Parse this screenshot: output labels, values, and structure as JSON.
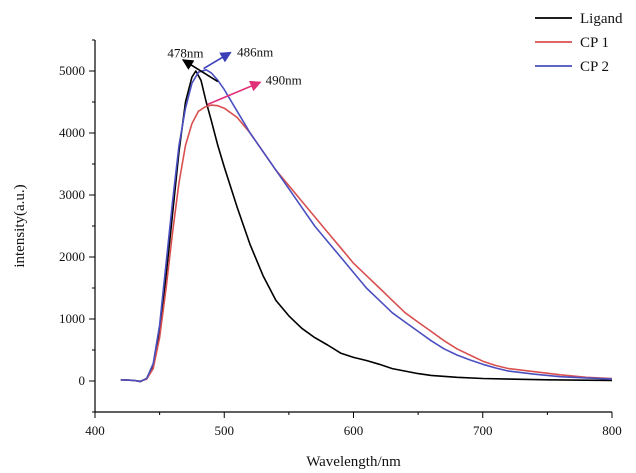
{
  "chart_data": {
    "type": "line",
    "xlabel": "Wavelength/nm",
    "ylabel": "intensity(a.u.)",
    "xlim": [
      400,
      800
    ],
    "ylim": [
      -500,
      5500
    ],
    "x_ticks": [
      400,
      500,
      600,
      700,
      800
    ],
    "y_ticks": [
      0,
      1000,
      2000,
      3000,
      4000,
      5000
    ],
    "grid": false,
    "legend_position": "top-right",
    "series": [
      {
        "name": "Ligand",
        "color": "#000000",
        "points": [
          [
            420,
            20
          ],
          [
            425,
            15
          ],
          [
            430,
            10
          ],
          [
            435,
            -10
          ],
          [
            440,
            40
          ],
          [
            445,
            250
          ],
          [
            450,
            800
          ],
          [
            455,
            1700
          ],
          [
            460,
            2700
          ],
          [
            465,
            3700
          ],
          [
            470,
            4500
          ],
          [
            475,
            4900
          ],
          [
            478,
            5000
          ],
          [
            482,
            4850
          ],
          [
            486,
            4500
          ],
          [
            490,
            4200
          ],
          [
            495,
            3800
          ],
          [
            500,
            3450
          ],
          [
            510,
            2800
          ],
          [
            520,
            2200
          ],
          [
            530,
            1700
          ],
          [
            540,
            1300
          ],
          [
            550,
            1050
          ],
          [
            560,
            850
          ],
          [
            570,
            700
          ],
          [
            580,
            580
          ],
          [
            590,
            450
          ],
          [
            600,
            380
          ],
          [
            610,
            330
          ],
          [
            620,
            270
          ],
          [
            630,
            200
          ],
          [
            640,
            160
          ],
          [
            650,
            120
          ],
          [
            660,
            90
          ],
          [
            680,
            60
          ],
          [
            700,
            40
          ],
          [
            720,
            30
          ],
          [
            750,
            20
          ],
          [
            800,
            10
          ]
        ]
      },
      {
        "name": "CP 1",
        "color": "#d95050",
        "points": [
          [
            420,
            20
          ],
          [
            425,
            15
          ],
          [
            430,
            10
          ],
          [
            435,
            -5
          ],
          [
            440,
            30
          ],
          [
            445,
            200
          ],
          [
            450,
            700
          ],
          [
            455,
            1500
          ],
          [
            460,
            2400
          ],
          [
            465,
            3200
          ],
          [
            470,
            3800
          ],
          [
            475,
            4150
          ],
          [
            480,
            4350
          ],
          [
            485,
            4420
          ],
          [
            490,
            4450
          ],
          [
            495,
            4440
          ],
          [
            500,
            4400
          ],
          [
            510,
            4250
          ],
          [
            520,
            4000
          ],
          [
            530,
            3700
          ],
          [
            540,
            3400
          ],
          [
            550,
            3150
          ],
          [
            560,
            2900
          ],
          [
            570,
            2650
          ],
          [
            580,
            2400
          ],
          [
            590,
            2150
          ],
          [
            600,
            1900
          ],
          [
            610,
            1700
          ],
          [
            620,
            1500
          ],
          [
            630,
            1300
          ],
          [
            640,
            1100
          ],
          [
            650,
            950
          ],
          [
            660,
            800
          ],
          [
            670,
            650
          ],
          [
            680,
            520
          ],
          [
            690,
            420
          ],
          [
            700,
            320
          ],
          [
            710,
            250
          ],
          [
            720,
            200
          ],
          [
            740,
            150
          ],
          [
            760,
            100
          ],
          [
            780,
            60
          ],
          [
            800,
            40
          ]
        ]
      },
      {
        "name": "CP 2",
        "color": "#4a4fc0",
        "points": [
          [
            420,
            20
          ],
          [
            425,
            15
          ],
          [
            430,
            10
          ],
          [
            435,
            -5
          ],
          [
            440,
            40
          ],
          [
            445,
            280
          ],
          [
            450,
            900
          ],
          [
            455,
            1900
          ],
          [
            460,
            2900
          ],
          [
            465,
            3800
          ],
          [
            470,
            4400
          ],
          [
            475,
            4800
          ],
          [
            480,
            4980
          ],
          [
            486,
            5020
          ],
          [
            490,
            4970
          ],
          [
            495,
            4850
          ],
          [
            500,
            4700
          ],
          [
            510,
            4350
          ],
          [
            520,
            4000
          ],
          [
            530,
            3700
          ],
          [
            540,
            3400
          ],
          [
            550,
            3100
          ],
          [
            560,
            2800
          ],
          [
            570,
            2500
          ],
          [
            580,
            2250
          ],
          [
            590,
            2000
          ],
          [
            600,
            1750
          ],
          [
            610,
            1500
          ],
          [
            620,
            1300
          ],
          [
            630,
            1100
          ],
          [
            640,
            950
          ],
          [
            650,
            800
          ],
          [
            660,
            650
          ],
          [
            670,
            520
          ],
          [
            680,
            420
          ],
          [
            690,
            340
          ],
          [
            700,
            270
          ],
          [
            710,
            210
          ],
          [
            720,
            160
          ],
          [
            740,
            110
          ],
          [
            760,
            70
          ],
          [
            780,
            50
          ],
          [
            800,
            30
          ]
        ]
      }
    ],
    "annotations": [
      {
        "text": "478nm",
        "color": "#000000",
        "peak_x": 478,
        "peak_y": 5000,
        "label_x": 456,
        "label_y": 5220,
        "arrow_from": [
          495,
          4830
        ],
        "arrow_to": [
          468,
          5180
        ]
      },
      {
        "text": "486nm",
        "color": "#3a3fb8",
        "peak_x": 486,
        "peak_y": 5020,
        "label_x": 510,
        "label_y": 5230,
        "arrow_from": [
          484,
          5040
        ],
        "arrow_to": [
          505,
          5300
        ]
      },
      {
        "text": "490nm",
        "color": "#e0307a",
        "peak_x": 490,
        "peak_y": 4450,
        "label_x": 532,
        "label_y": 4780,
        "arrow_from": [
          487,
          4460
        ],
        "arrow_to": [
          528,
          4820
        ]
      }
    ]
  }
}
